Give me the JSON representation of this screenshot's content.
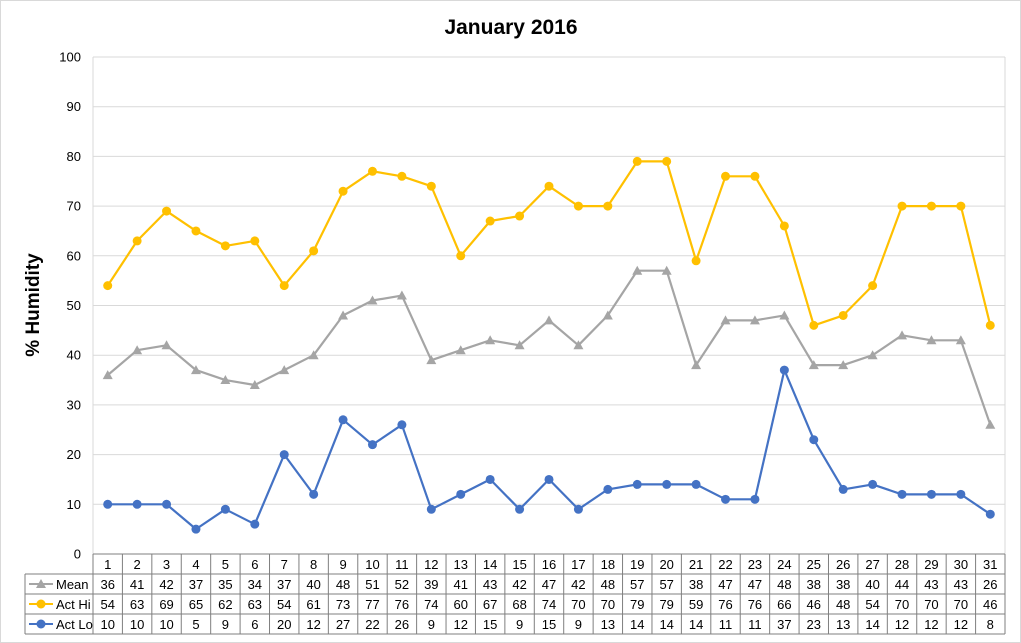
{
  "chart_data": {
    "type": "line",
    "title": "January 2016",
    "xlabel": "",
    "ylabel": "% Humidity",
    "ylim": [
      0,
      100
    ],
    "y_ticks": [
      0,
      10,
      20,
      30,
      40,
      50,
      60,
      70,
      80,
      90,
      100
    ],
    "grid": true,
    "legend": "data-table",
    "categories": [
      "1",
      "2",
      "3",
      "4",
      "5",
      "6",
      "7",
      "8",
      "9",
      "10",
      "11",
      "12",
      "13",
      "14",
      "15",
      "16",
      "17",
      "18",
      "19",
      "20",
      "21",
      "22",
      "23",
      "24",
      "25",
      "26",
      "27",
      "28",
      "29",
      "30",
      "31"
    ],
    "series": [
      {
        "name": "Mean",
        "color": "#a5a5a5",
        "marker": "triangle",
        "values": [
          36,
          41,
          42,
          37,
          35,
          34,
          37,
          40,
          48,
          51,
          52,
          39,
          41,
          43,
          42,
          47,
          42,
          48,
          57,
          57,
          38,
          47,
          47,
          48,
          38,
          38,
          40,
          44,
          43,
          43,
          26
        ]
      },
      {
        "name": "Act Hi",
        "color": "#ffc000",
        "marker": "circle",
        "values": [
          54,
          63,
          69,
          65,
          62,
          63,
          54,
          61,
          73,
          77,
          76,
          74,
          60,
          67,
          68,
          74,
          70,
          70,
          79,
          79,
          59,
          76,
          76,
          66,
          46,
          48,
          54,
          70,
          70,
          70,
          46
        ]
      },
      {
        "name": "Act Lo",
        "color": "#4472c4",
        "marker": "circle",
        "values": [
          10,
          10,
          10,
          5,
          9,
          6,
          20,
          12,
          27,
          22,
          26,
          9,
          12,
          15,
          9,
          15,
          9,
          13,
          14,
          14,
          14,
          11,
          11,
          37,
          23,
          13,
          14,
          12,
          12,
          12,
          8
        ]
      }
    ]
  }
}
